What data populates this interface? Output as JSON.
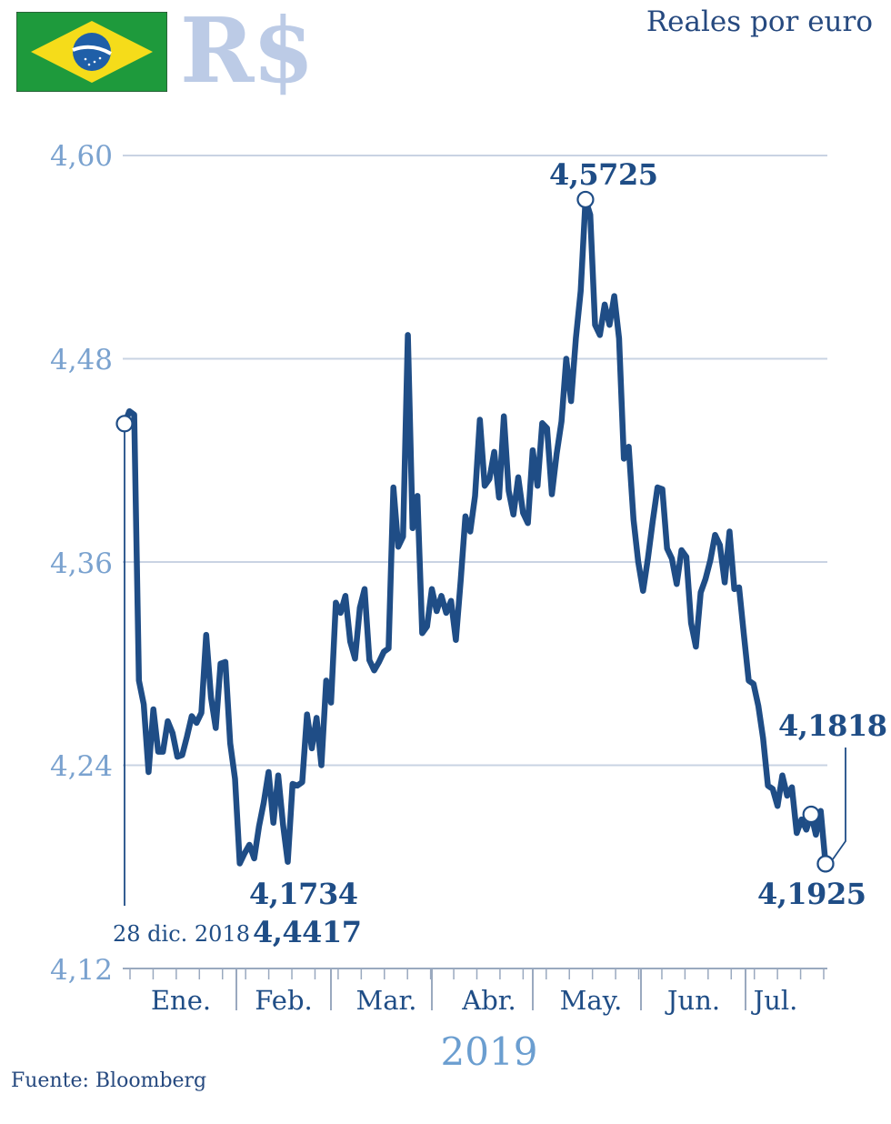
{
  "header": {
    "currency_symbol": "R$",
    "unit_label": "Reales por euro",
    "flag_icon": "brazil-flag-icon"
  },
  "colors": {
    "line": "#1f4d86",
    "grid": "#c9d3e3",
    "axis_text": "#7aa2cf",
    "currency_symbol": "#bccbe6",
    "flag_green": "#1e9a3c",
    "flag_yellow": "#f5dc1a",
    "flag_blue": "#1f5fa8"
  },
  "annotations": {
    "start_date": "28 dic. 2018",
    "start_value": "4,4417",
    "min_value": "4,1734",
    "max_value": "4,5725",
    "end_value": "4,1818",
    "prev_value": "4,1925"
  },
  "source": "Fuente: Bloomberg",
  "chart_data": {
    "type": "line",
    "title": "",
    "ylabel": "Reales por euro",
    "xlabel": "2019",
    "ylim": [
      4.12,
      4.6
    ],
    "yticks": [
      "4,60",
      "4,48",
      "4,36",
      "4,24",
      "4,12"
    ],
    "ytick_values": [
      4.6,
      4.48,
      4.36,
      4.24,
      4.12
    ],
    "month_labels": [
      "Ene.",
      "Feb.",
      "Mar.",
      "Abr.",
      "May.",
      "Jun.",
      "Jul."
    ],
    "grid": true,
    "series": [
      {
        "values": [
          4.4417,
          4.449,
          4.447,
          4.29,
          4.276,
          4.236,
          4.273,
          4.248,
          4.248,
          4.266,
          4.259,
          4.245,
          4.246,
          4.257,
          4.269,
          4.265,
          4.271,
          4.317,
          4.28,
          4.262,
          4.3,
          4.301,
          4.253,
          4.232,
          4.182,
          4.188,
          4.193,
          4.185,
          4.204,
          4.218,
          4.236,
          4.206,
          4.234,
          4.205,
          4.183,
          4.229,
          4.228,
          4.23,
          4.27,
          4.25,
          4.268,
          4.24,
          4.29,
          4.277,
          4.336,
          4.33,
          4.34,
          4.313,
          4.303,
          4.333,
          4.344,
          4.302,
          4.296,
          4.301,
          4.307,
          4.309,
          4.404,
          4.369,
          4.375,
          4.494,
          4.38,
          4.399,
          4.318,
          4.322,
          4.344,
          4.331,
          4.34,
          4.33,
          4.337,
          4.314,
          4.349,
          4.387,
          4.378,
          4.399,
          4.444,
          4.405,
          4.409,
          4.425,
          4.398,
          4.446,
          4.402,
          4.388,
          4.41,
          4.389,
          4.383,
          4.426,
          4.405,
          4.442,
          4.439,
          4.4,
          4.424,
          4.443,
          4.48,
          4.455,
          4.492,
          4.52,
          4.574,
          4.565,
          4.5,
          4.494,
          4.512,
          4.5,
          4.517,
          4.492,
          4.421,
          4.428,
          4.385,
          4.36,
          4.343,
          4.362,
          4.384,
          4.404,
          4.403,
          4.368,
          4.362,
          4.347,
          4.367,
          4.363,
          4.324,
          4.31,
          4.342,
          4.35,
          4.361,
          4.376,
          4.37,
          4.348,
          4.378,
          4.344,
          4.345,
          4.317,
          4.29,
          4.288,
          4.275,
          4.256,
          4.228,
          4.226,
          4.216,
          4.234,
          4.222,
          4.227,
          4.2,
          4.208,
          4.202,
          4.211,
          4.199,
          4.213,
          4.1818
        ]
      }
    ],
    "x_start": "2018-12-28",
    "x_end": "2019-07-24"
  }
}
